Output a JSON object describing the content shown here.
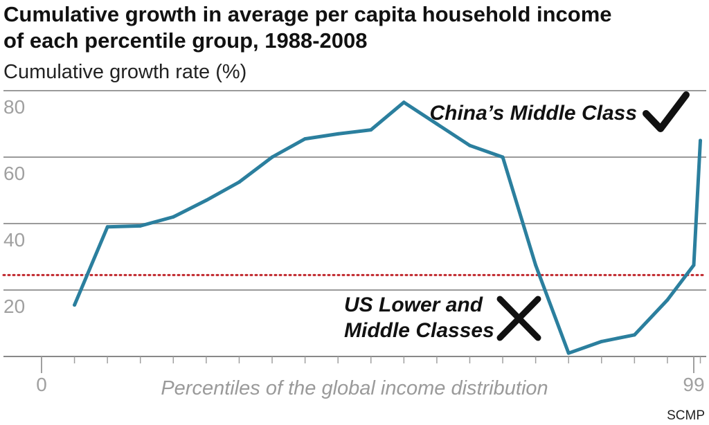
{
  "title_line1": "Cumulative growth in average per capita household income",
  "title_line2": "of each percentile group, 1988-2008",
  "ylabel": "Cumulative growth rate (%)",
  "xlabel": "Percentiles of the global income distribution",
  "credit": "SCMP",
  "annotations": {
    "china": "China’s Middle Class",
    "us_line1": "US Lower and",
    "us_line2": "Middle Classes",
    "china_mark": "check-icon",
    "us_mark": "cross-icon"
  },
  "colors": {
    "line": "#2b7f9e",
    "reference": "#c0272d",
    "grid": "#9a9a9a",
    "mark": "#111111"
  },
  "chart_data": {
    "type": "line",
    "title": "Cumulative growth in average per capita household income of each percentile group, 1988-2008",
    "xlabel": "Percentiles of the global income distribution",
    "ylabel": "Cumulative growth rate (%)",
    "xlim": [
      0,
      100
    ],
    "ylim": [
      0,
      83
    ],
    "yticks": [
      20,
      40,
      60,
      80
    ],
    "xticks": [
      0,
      99
    ],
    "xtick_labels": [
      "0",
      "99"
    ],
    "grid": true,
    "x": [
      5,
      10,
      15,
      20,
      25,
      30,
      35,
      40,
      45,
      50,
      55,
      60,
      65,
      70,
      75,
      80,
      85,
      90,
      95,
      99,
      100
    ],
    "y": [
      15.5,
      39,
      39.3,
      42,
      47,
      52.5,
      60,
      65.5,
      67,
      68.2,
      76.5,
      70,
      63.5,
      60,
      27.5,
      1,
      4.5,
      6.5,
      17,
      27.5,
      65
    ],
    "reference_line": {
      "y": 24.5,
      "style": "dotted"
    }
  }
}
